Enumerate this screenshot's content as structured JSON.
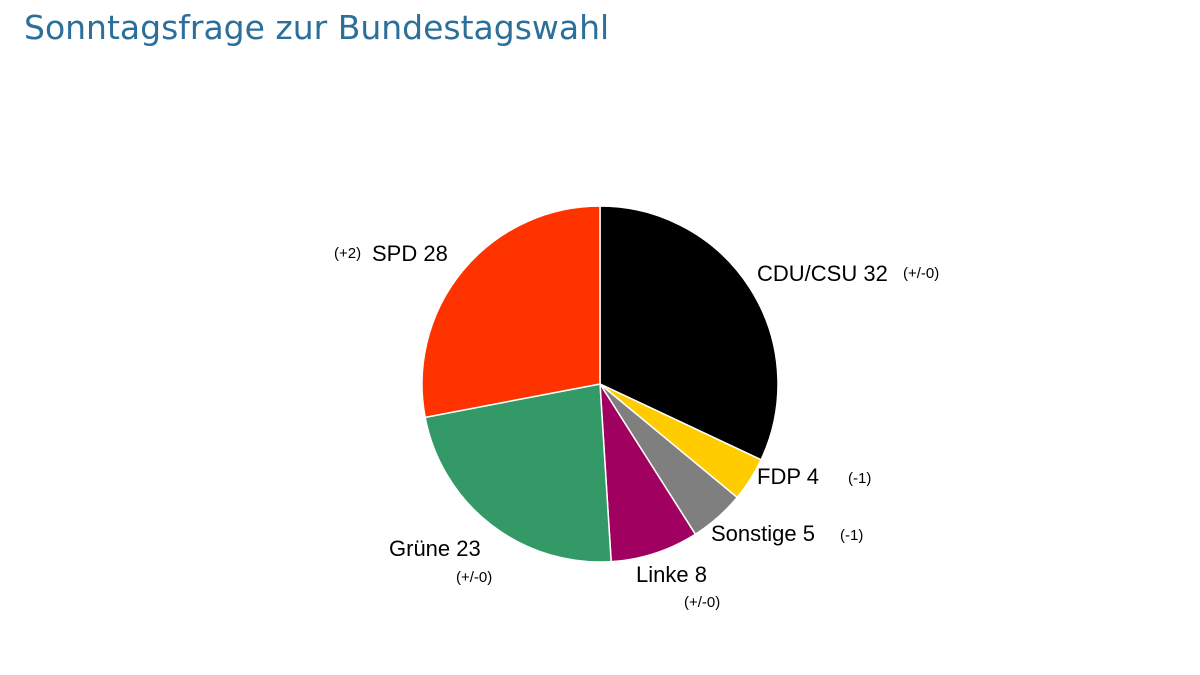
{
  "title": "Sonntagsfrage zur Bundestagswahl",
  "chart_data": {
    "type": "pie",
    "title": "Sonntagsfrage zur Bundestagswahl",
    "start_angle_deg": 0,
    "direction": "clockwise",
    "slices": [
      {
        "party": "CDU/CSU",
        "value": 32,
        "change": "(+/-0)",
        "color": "#000000"
      },
      {
        "party": "FDP",
        "value": 4,
        "change": "(-1)",
        "color": "#ffcc00"
      },
      {
        "party": "Sonstige",
        "value": 5,
        "change": "(-1)",
        "color": "#7f7f7f"
      },
      {
        "party": "Linke",
        "value": 8,
        "change": "(+/-0)",
        "color": "#a0005f"
      },
      {
        "party": "Grüne",
        "value": 23,
        "change": "(+/-0)",
        "color": "#339966"
      },
      {
        "party": "SPD",
        "value": 28,
        "change": "(+2)",
        "color": "#ff3300"
      }
    ]
  }
}
